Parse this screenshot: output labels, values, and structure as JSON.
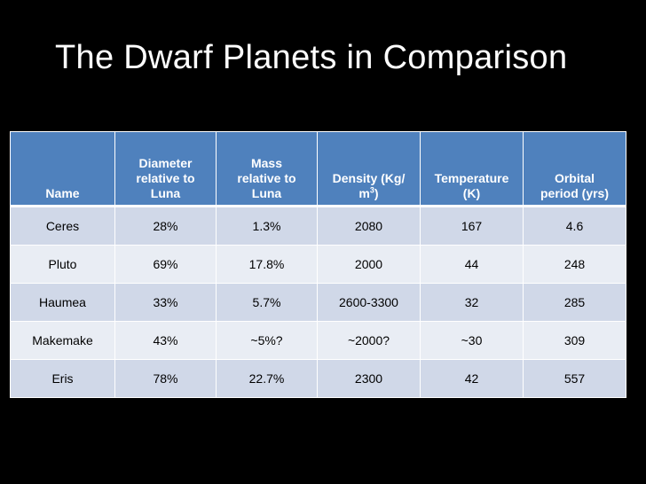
{
  "title": "The Dwarf Planets in Comparison",
  "table": {
    "headers": [
      {
        "line1": "",
        "line2": "",
        "line3": "Name"
      },
      {
        "line1": "Diameter",
        "line2": "relative to",
        "line3": "Luna"
      },
      {
        "line1": "Mass",
        "line2": "relative to",
        "line3": "Luna"
      },
      {
        "line1": "",
        "line2": "Density (Kg/",
        "line3": "m",
        "sup": "3",
        "after": ")"
      },
      {
        "line1": "",
        "line2": "Temperature",
        "line3": "(K)"
      },
      {
        "line1": "",
        "line2": "Orbital",
        "line3": "period (yrs)"
      }
    ],
    "rows": [
      [
        "Ceres",
        "28%",
        "1.3%",
        "2080",
        "167",
        "4.6"
      ],
      [
        "Pluto",
        "69%",
        "17.8%",
        "2000",
        "44",
        "248"
      ],
      [
        "Haumea",
        "33%",
        "5.7%",
        "2600-3300",
        "32",
        "285"
      ],
      [
        "Makemake",
        "43%",
        "~5%?",
        "~2000?",
        "~30",
        "309"
      ],
      [
        "Eris",
        "78%",
        "22.7%",
        "2300",
        "42",
        "557"
      ]
    ]
  },
  "colors": {
    "background": "#000000",
    "header": "#4f81bd",
    "row_odd": "#d0d8e8",
    "row_even": "#e9edf4"
  }
}
